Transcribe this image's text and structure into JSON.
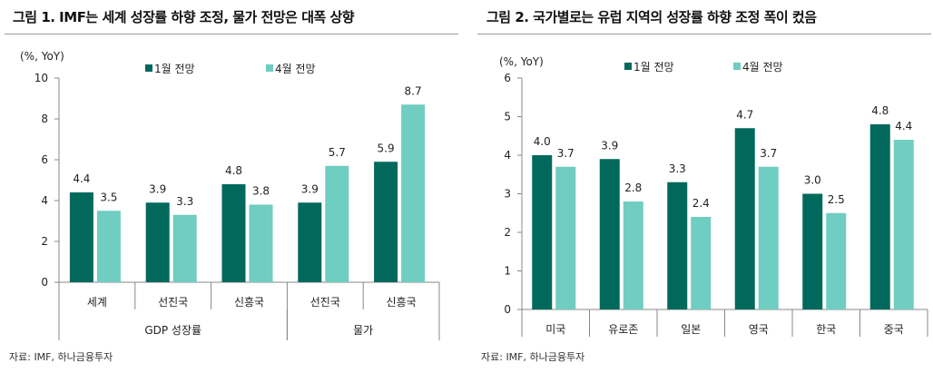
{
  "colors": {
    "jan": "#00695c",
    "apr": "#6fcdc1"
  },
  "chart_data": [
    {
      "type": "bar",
      "title": "그림 1. IMF는 세계 성장률 하향 조정, 물가 전망은 대폭 상향",
      "ylabel": "(%, YoY)",
      "ylim": [
        0,
        10
      ],
      "yticks": [
        0,
        2,
        4,
        6,
        8,
        10
      ],
      "categories": [
        "세계",
        "선진국",
        "신흥국",
        "선진국",
        "신흥국"
      ],
      "groups": [
        {
          "label": "GDP 성장률",
          "span": 3
        },
        {
          "label": "물가",
          "span": 2
        }
      ],
      "series": [
        {
          "name": "1월 전망",
          "values": [
            4.4,
            3.9,
            4.8,
            3.9,
            5.9
          ]
        },
        {
          "name": "4월 전망",
          "values": [
            3.5,
            3.3,
            3.8,
            5.7,
            8.7
          ]
        }
      ],
      "legend": "top",
      "source": "자료: IMF, 하나금융투자"
    },
    {
      "type": "bar",
      "title": "그림 2. 국가별로는 유럽 지역의 성장률 하향 조정 폭이 컸음",
      "ylabel": "(%, YoY)",
      "ylim": [
        0,
        6
      ],
      "yticks": [
        0,
        1,
        2,
        3,
        4,
        5,
        6
      ],
      "categories": [
        "미국",
        "유로존",
        "일본",
        "영국",
        "한국",
        "중국"
      ],
      "series": [
        {
          "name": "1월 전망",
          "values": [
            4.0,
            3.9,
            3.3,
            4.7,
            3.0,
            4.8
          ]
        },
        {
          "name": "4월 전망",
          "values": [
            3.7,
            2.8,
            2.4,
            3.7,
            2.5,
            4.4
          ]
        }
      ],
      "legend": "top",
      "source": "자료: IMF, 하나금융투자"
    }
  ]
}
